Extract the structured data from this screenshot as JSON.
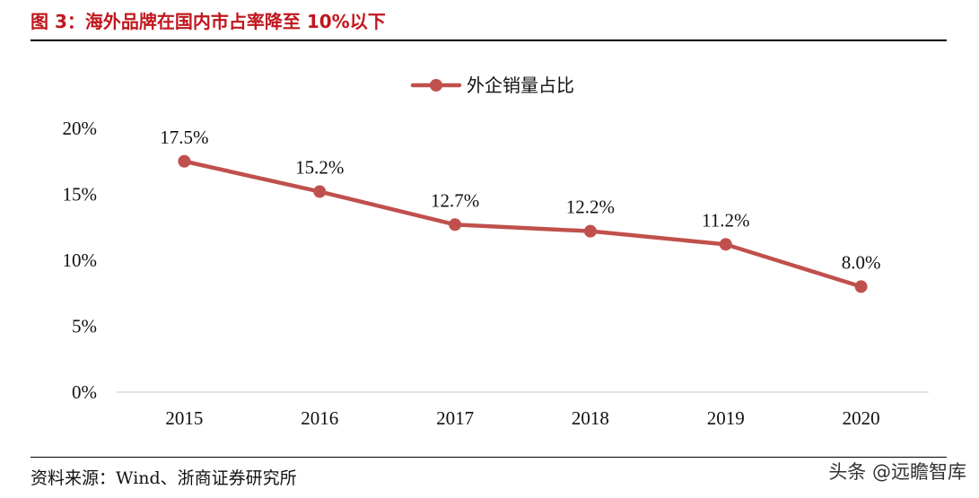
{
  "figure": {
    "title": "图 3：海外品牌在国内市占率降至 10%以下",
    "source": "资料来源：Wind、浙商证券研究所",
    "watermark": "头条 @远瞻智库"
  },
  "chart_data": {
    "type": "line",
    "title": "",
    "xlabel": "",
    "ylabel": "",
    "x": [
      "2015",
      "2016",
      "2017",
      "2018",
      "2019",
      "2020"
    ],
    "series": [
      {
        "name": "外企销量占比",
        "values": [
          17.5,
          15.2,
          12.7,
          12.2,
          11.2,
          8.0
        ],
        "labels": [
          "17.5%",
          "15.2%",
          "12.7%",
          "12.2%",
          "11.2%",
          "8.0%"
        ],
        "color": "#c0504d"
      }
    ],
    "ylim": [
      0,
      20
    ],
    "yticks": [
      0,
      5,
      10,
      15,
      20
    ],
    "ytick_labels": [
      "0%",
      "5%",
      "10%",
      "15%",
      "20%"
    ],
    "grid": false,
    "legend": "top-center"
  }
}
